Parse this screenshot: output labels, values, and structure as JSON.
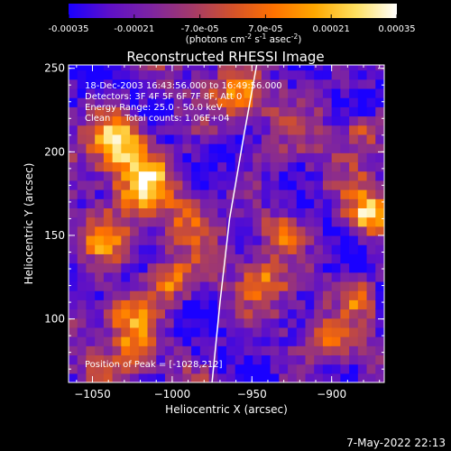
{
  "colorbar": {
    "ticks": [
      "-0.00035",
      "-0.00021",
      "-7.0e-05",
      "7.0e-05",
      "0.00021",
      "0.00035"
    ],
    "units_main": "(photons cm",
    "units_sup1": "-2",
    "units_mid": " s",
    "units_sup2": "-1",
    "units_end": " asec",
    "units_sup3": "-2",
    "units_close": ")",
    "colors": [
      "#1a00ff",
      "#5e10c8",
      "#7d24a2",
      "#a33a6a",
      "#d4522a",
      "#ff7200",
      "#ffa800",
      "#ffe060",
      "#ffffff"
    ]
  },
  "chart_data": {
    "type": "heatmap",
    "title": "Reconstructed RHESSI Image",
    "xlabel": "Heliocentric X (arcsec)",
    "ylabel": "Heliocentric Y (arcsec)",
    "xlim": [
      -1065,
      -867
    ],
    "ylim": [
      62,
      252
    ],
    "xticks": [
      -1050,
      -1000,
      -950,
      -900
    ],
    "xtick_labels": [
      "−1050",
      "−1000",
      "−950",
      "−900"
    ],
    "yticks": [
      100,
      150,
      200,
      250
    ],
    "ytick_labels": [
      "100",
      "150",
      "200",
      "250"
    ],
    "color_range": [
      -0.00035,
      0.00035
    ],
    "annotations": [
      "18-Dec-2003 16:43:56.000 to 16:49:56.000",
      "Detectors: 3F 4F 5F 6F 7F 8F, Att 0",
      "Energy Range: 25.0 - 50.0 keV",
      "Clean     Total counts: 1.06E+04"
    ],
    "peak_label": "Position of Peak = [-1028,212]",
    "peak_position": [
      -1028,
      212
    ],
    "limb_curve": [
      [
        -975,
        62
      ],
      [
        -970,
        110
      ],
      [
        -964,
        160
      ],
      [
        -955,
        210
      ],
      [
        -947,
        252
      ]
    ]
  },
  "footer": {
    "timestamp": "7-May-2022 22:13"
  }
}
